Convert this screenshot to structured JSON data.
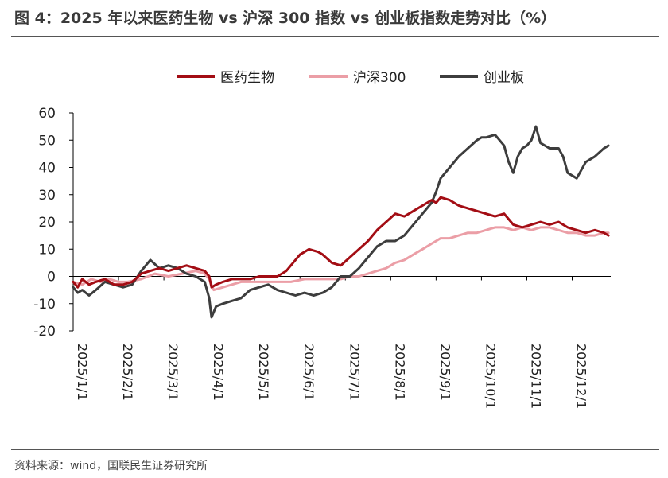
{
  "header": {
    "title": "图 4：2025 年以来医药生物 vs 沪深 300 指数 vs 创业板指数走势对比（%）"
  },
  "footer": {
    "source": "资料来源：wind，国联民生证券研究所"
  },
  "chart_data": {
    "type": "line",
    "title": "图 4：2025 年以来医药生物 vs 沪深 300 指数 vs 创业板指数走势对比（%）",
    "xlabel": "",
    "ylabel": "",
    "ylim": [
      -20,
      60
    ],
    "yticks": [
      -20,
      -10,
      0,
      10,
      20,
      30,
      40,
      50,
      60
    ],
    "xlim": [
      0,
      11.85
    ],
    "xticks": [
      {
        "label": "2025/1/1",
        "x": 0
      },
      {
        "label": "2025/2/1",
        "x": 1
      },
      {
        "label": "2025/3/1",
        "x": 2
      },
      {
        "label": "2025/4/1",
        "x": 3
      },
      {
        "label": "2025/5/1",
        "x": 4
      },
      {
        "label": "2025/6/1",
        "x": 5
      },
      {
        "label": "2025/7/1",
        "x": 6
      },
      {
        "label": "2025/8/1",
        "x": 7
      },
      {
        "label": "2025/9/1",
        "x": 8
      },
      {
        "label": "2025/10/1",
        "x": 9
      },
      {
        "label": "2025/11/1",
        "x": 10
      },
      {
        "label": "2025/12/1",
        "x": 11
      }
    ],
    "grid": false,
    "legend": "top-center",
    "colors": {
      "医药生物": "#a30d14",
      "沪深300": "#eb9ea6",
      "创业板": "#3d3d3d"
    },
    "series": [
      {
        "name": "医药生物",
        "color": "#a30d14",
        "x": [
          0,
          0.1,
          0.2,
          0.35,
          0.5,
          0.7,
          0.9,
          1.1,
          1.3,
          1.5,
          1.7,
          1.9,
          2.1,
          2.3,
          2.5,
          2.7,
          2.9,
          3.0,
          3.05,
          3.15,
          3.3,
          3.5,
          3.7,
          3.9,
          4.1,
          4.3,
          4.5,
          4.7,
          4.9,
          5.0,
          5.2,
          5.4,
          5.5,
          5.7,
          5.9,
          6.1,
          6.3,
          6.5,
          6.7,
          6.9,
          7.1,
          7.3,
          7.5,
          7.7,
          7.9,
          8.0,
          8.1,
          8.3,
          8.5,
          8.7,
          8.9,
          9.1,
          9.3,
          9.5,
          9.7,
          9.9,
          10.1,
          10.3,
          10.5,
          10.7,
          10.9,
          11.1,
          11.3,
          11.5,
          11.7,
          11.8
        ],
        "y": [
          -2,
          -4,
          -1,
          -3,
          -2,
          -1,
          -3,
          -3,
          -2,
          1,
          2,
          3,
          2,
          3,
          4,
          3,
          2,
          0,
          -4,
          -3,
          -2,
          -1,
          -1,
          -1,
          0,
          0,
          0,
          2,
          6,
          8,
          10,
          9,
          8,
          5,
          4,
          7,
          10,
          13,
          17,
          20,
          23,
          22,
          24,
          26,
          28,
          27,
          29,
          28,
          26,
          25,
          24,
          23,
          22,
          23,
          19,
          18,
          19,
          20,
          19,
          20,
          18,
          17,
          16,
          17,
          16,
          15
        ]
      },
      {
        "name": "沪深300",
        "color": "#eb9ea6",
        "x": [
          0,
          0.2,
          0.4,
          0.6,
          0.8,
          1.0,
          1.2,
          1.5,
          1.8,
          2.1,
          2.4,
          2.7,
          2.9,
          3.0,
          3.1,
          3.3,
          3.5,
          3.7,
          3.9,
          4.2,
          4.5,
          4.8,
          5.1,
          5.4,
          5.7,
          5.9,
          6.1,
          6.3,
          6.5,
          6.7,
          6.9,
          7.1,
          7.3,
          7.5,
          7.7,
          7.9,
          8.0,
          8.1,
          8.3,
          8.5,
          8.7,
          8.9,
          9.1,
          9.3,
          9.5,
          9.7,
          9.9,
          10.1,
          10.3,
          10.5,
          10.7,
          10.9,
          11.1,
          11.3,
          11.5,
          11.7,
          11.8
        ],
        "y": [
          -2,
          -3,
          -1,
          -2,
          -1,
          -2,
          -2,
          -1,
          1,
          0,
          1,
          2,
          1,
          -1,
          -5,
          -4,
          -3,
          -2,
          -2,
          -2,
          -2,
          -2,
          -1,
          -1,
          -1,
          -1,
          0,
          0,
          1,
          2,
          3,
          5,
          6,
          8,
          10,
          12,
          13,
          14,
          14,
          15,
          16,
          16,
          17,
          18,
          18,
          17,
          18,
          17,
          18,
          18,
          17,
          16,
          16,
          15,
          15,
          16,
          16
        ]
      },
      {
        "name": "创业板",
        "color": "#3d3d3d",
        "x": [
          0,
          0.1,
          0.2,
          0.35,
          0.5,
          0.7,
          0.9,
          1.1,
          1.3,
          1.5,
          1.6,
          1.7,
          1.9,
          2.1,
          2.3,
          2.5,
          2.7,
          2.9,
          3.0,
          3.05,
          3.15,
          3.3,
          3.5,
          3.7,
          3.9,
          4.1,
          4.3,
          4.5,
          4.7,
          4.9,
          5.1,
          5.3,
          5.5,
          5.7,
          5.9,
          6.1,
          6.3,
          6.5,
          6.7,
          6.9,
          7.1,
          7.3,
          7.5,
          7.7,
          7.9,
          8.0,
          8.1,
          8.3,
          8.5,
          8.7,
          8.9,
          9.0,
          9.1,
          9.3,
          9.5,
          9.6,
          9.7,
          9.8,
          9.9,
          10.0,
          10.1,
          10.2,
          10.3,
          10.5,
          10.7,
          10.8,
          10.9,
          11.1,
          11.3,
          11.5,
          11.7,
          11.8
        ],
        "y": [
          -4,
          -6,
          -5,
          -7,
          -5,
          -2,
          -3,
          -4,
          -3,
          2,
          4,
          6,
          3,
          4,
          3,
          1,
          0,
          -2,
          -8,
          -15,
          -11,
          -10,
          -9,
          -8,
          -5,
          -4,
          -3,
          -5,
          -6,
          -7,
          -6,
          -7,
          -6,
          -4,
          0,
          0,
          3,
          7,
          11,
          13,
          13,
          15,
          19,
          23,
          27,
          31,
          36,
          40,
          44,
          47,
          50,
          51,
          51,
          52,
          48,
          42,
          38,
          44,
          47,
          48,
          50,
          55,
          49,
          47,
          47,
          44,
          38,
          36,
          42,
          44,
          47,
          48
        ]
      }
    ]
  }
}
